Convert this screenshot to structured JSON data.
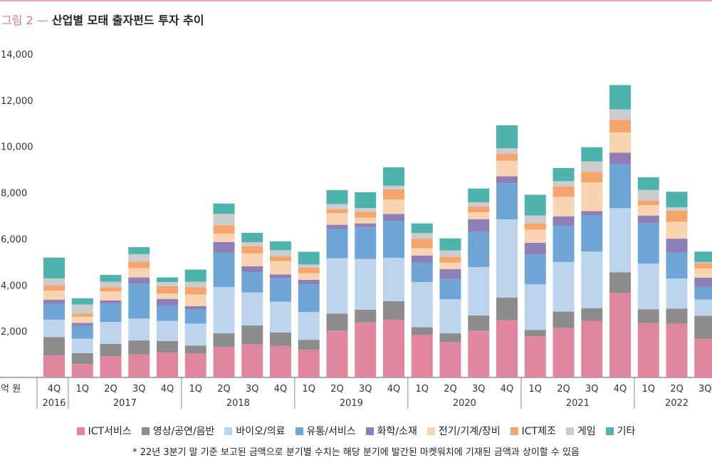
{
  "figure": {
    "number": "그림 2",
    "dash": "—",
    "title": "산업별 모태 출자펀드 투자 추이",
    "unit_label": "억 원",
    "footnote": "* 22년 3분기 말 기준 보고된 금액으로 분기별 수치는 해당 분기에 발간된 마켓워치에 기재된 금액과 상이할 수 있음"
  },
  "chart_data": {
    "type": "bar",
    "stacked": true,
    "title": "산업별 모태 출자펀드 투자 추이",
    "ylabel": "억 원",
    "ylim": [
      0,
      14000
    ],
    "yticks": [
      2000,
      4000,
      6000,
      8000,
      10000,
      12000,
      14000
    ],
    "ytick_labels": [
      "2,000",
      "4,000",
      "6,000",
      "8,000",
      "10,000",
      "12,000",
      "14,000"
    ],
    "grid": false,
    "legend_position": "bottom",
    "categories": [
      "4Q",
      "1Q",
      "2Q",
      "3Q",
      "4Q",
      "1Q",
      "2Q",
      "3Q",
      "4Q",
      "1Q",
      "2Q",
      "3Q",
      "4Q",
      "1Q",
      "2Q",
      "3Q",
      "4Q",
      "1Q",
      "2Q",
      "3Q",
      "4Q",
      "1Q",
      "2Q",
      "3Q"
    ],
    "years": [
      {
        "label": "2016",
        "start": 0,
        "end": 0
      },
      {
        "label": "2017",
        "start": 1,
        "end": 4
      },
      {
        "label": "2018",
        "start": 5,
        "end": 8
      },
      {
        "label": "2019",
        "start": 9,
        "end": 12
      },
      {
        "label": "2020",
        "start": 13,
        "end": 16
      },
      {
        "label": "2021",
        "start": 17,
        "end": 20
      },
      {
        "label": "2022",
        "start": 21,
        "end": 23
      }
    ],
    "series": [
      {
        "name": "ICT서비스",
        "color": "#e0869f",
        "values": [
          950,
          580,
          920,
          1000,
          1080,
          1050,
          1330,
          1450,
          1370,
          1200,
          2030,
          2380,
          2500,
          1850,
          1530,
          2030,
          2480,
          1780,
          2150,
          2450,
          3650,
          2350,
          2330,
          1670
        ]
      },
      {
        "name": "영상/공연/음반",
        "color": "#8c8c8c",
        "values": [
          800,
          470,
          530,
          600,
          500,
          330,
          580,
          800,
          580,
          430,
          730,
          550,
          800,
          330,
          380,
          650,
          980,
          280,
          700,
          550,
          900,
          600,
          650,
          1000
        ]
      },
      {
        "name": "바이오/의료",
        "color": "#bcd4ec",
        "values": [
          750,
          630,
          950,
          950,
          870,
          950,
          2000,
          1430,
          1330,
          1200,
          2400,
          2200,
          1880,
          1950,
          1480,
          2100,
          3380,
          1970,
          2150,
          2450,
          2780,
          1980,
          1300,
          700
        ]
      },
      {
        "name": "유통/서비스",
        "color": "#6ea5d6",
        "values": [
          680,
          550,
          800,
          1500,
          650,
          630,
          1500,
          880,
          1000,
          1200,
          1270,
          1370,
          1600,
          850,
          870,
          1520,
          1570,
          1300,
          1570,
          1570,
          1900,
          1750,
          1130,
          550
        ]
      },
      {
        "name": "화학/소재",
        "color": "#8e7fb6",
        "values": [
          180,
          130,
          130,
          280,
          300,
          130,
          450,
          250,
          180,
          200,
          180,
          170,
          300,
          300,
          430,
          550,
          300,
          500,
          400,
          180,
          500,
          330,
          600,
          400
        ]
      },
      {
        "name": "전기/기계/장비",
        "color": "#fad3b3",
        "values": [
          400,
          270,
          400,
          400,
          230,
          500,
          370,
          570,
          580,
          280,
          500,
          250,
          620,
          320,
          280,
          300,
          680,
          570,
          850,
          1250,
          880,
          450,
          730,
          400
        ]
      },
      {
        "name": "ICT제조",
        "color": "#f5a56b",
        "values": [
          230,
          130,
          180,
          280,
          320,
          320,
          350,
          300,
          200,
          250,
          170,
          250,
          450,
          400,
          250,
          250,
          300,
          280,
          450,
          450,
          550,
          200,
          480,
          230
        ]
      },
      {
        "name": "게임",
        "color": "#cccccc",
        "values": [
          300,
          400,
          230,
          330,
          180,
          230,
          500,
          180,
          270,
          130,
          230,
          170,
          150,
          250,
          280,
          180,
          230,
          330,
          230,
          450,
          450,
          460,
          150,
          50
        ]
      },
      {
        "name": "기타",
        "color": "#4fb3ad",
        "values": [
          900,
          270,
          300,
          300,
          200,
          530,
          450,
          400,
          380,
          550,
          600,
          680,
          800,
          420,
          520,
          600,
          1000,
          900,
          570,
          620,
          1050,
          550,
          670,
          450
        ]
      }
    ]
  }
}
